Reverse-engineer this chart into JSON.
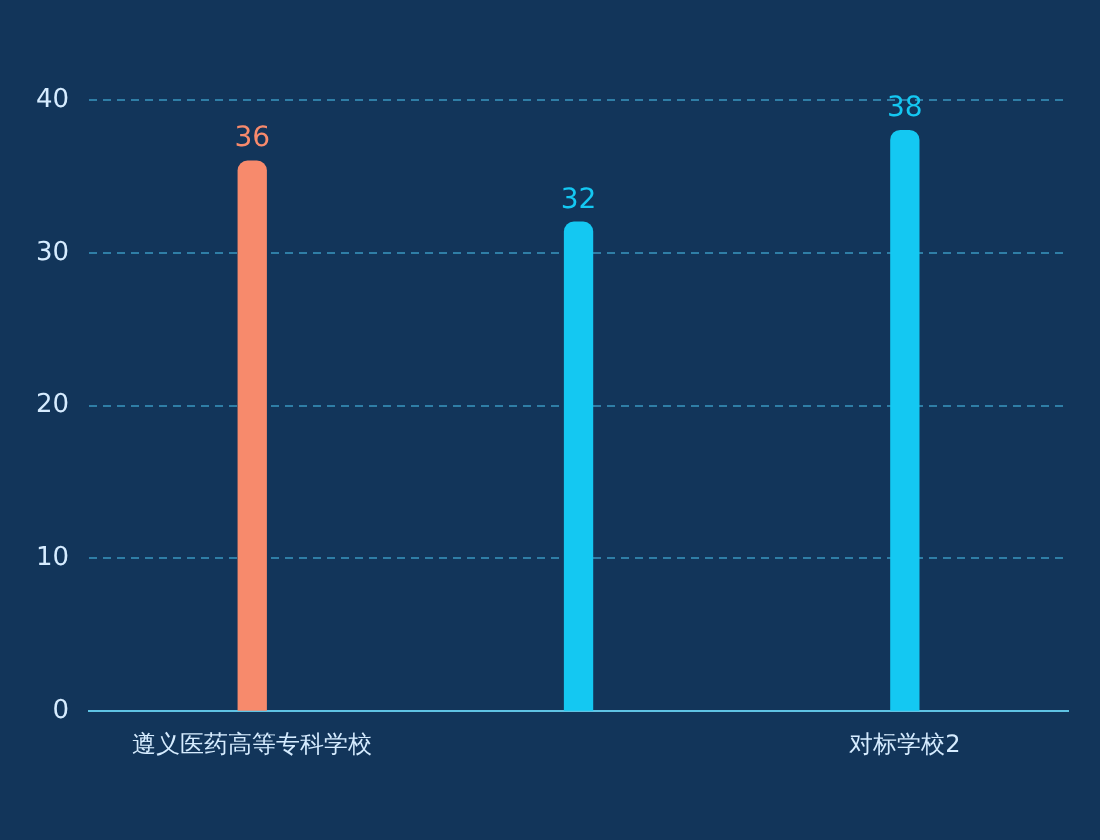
{
  "chart_data": {
    "type": "bar",
    "categories": [
      "遵义医药高等专科学校",
      null,
      "对标学校2"
    ],
    "values": [
      36,
      32,
      38
    ],
    "colors": [
      "#f78a6c",
      "#14c8f2",
      "#14c8f2"
    ],
    "ylim": [
      0,
      40
    ],
    "yticks": [
      0,
      10,
      20,
      30,
      40
    ],
    "grid": "y",
    "data_labels": true,
    "legend": false
  }
}
